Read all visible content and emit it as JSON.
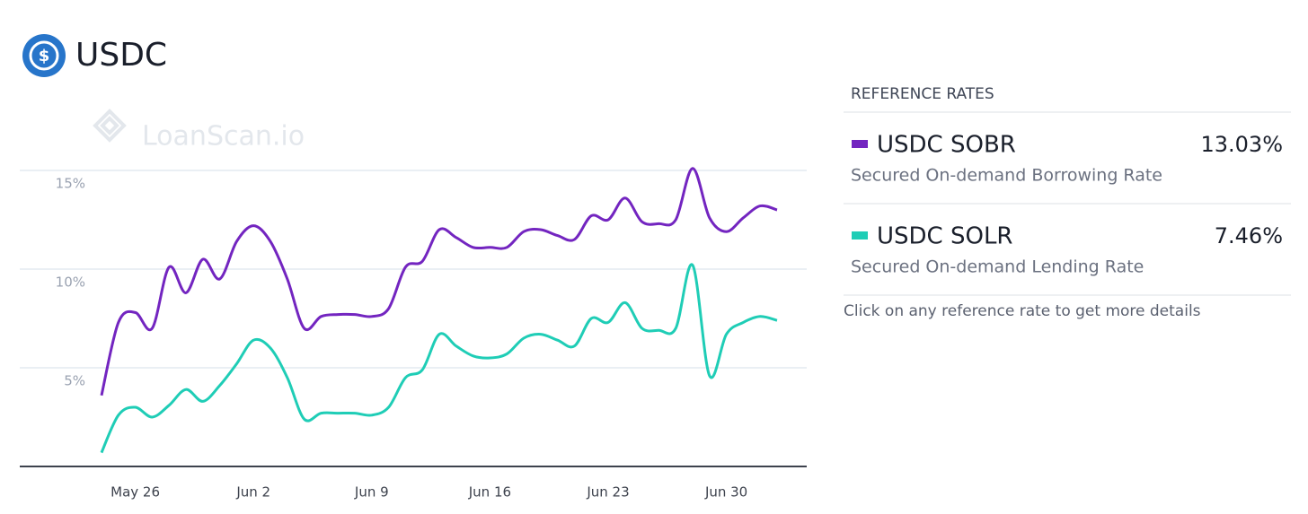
{
  "header": {
    "title": "USDC",
    "watermark": "LoanScan.io"
  },
  "chart_data": {
    "type": "line",
    "categories": [
      null,
      null,
      "May 26",
      null,
      null,
      null,
      null,
      null,
      null,
      "Jun 2",
      null,
      null,
      null,
      null,
      null,
      null,
      "Jun 9",
      null,
      null,
      null,
      null,
      null,
      null,
      "Jun 16",
      null,
      null,
      null,
      null,
      null,
      null,
      "Jun 23",
      null,
      null,
      null,
      null,
      null,
      null,
      "Jun 30",
      null,
      null,
      null
    ],
    "series": [
      {
        "name": "USDC SOBR",
        "color": "#7325c0",
        "values": [
          3.6,
          7.3,
          7.8,
          7.0,
          10.1,
          8.8,
          10.5,
          9.5,
          11.4,
          12.2,
          11.4,
          9.5,
          7.0,
          7.6,
          7.7,
          7.7,
          7.6,
          8.0,
          10.1,
          10.4,
          12.0,
          11.6,
          11.1,
          11.1,
          11.1,
          11.9,
          12.0,
          11.7,
          11.5,
          12.7,
          12.5,
          13.6,
          12.4,
          12.3,
          12.5,
          15.1,
          12.6,
          11.9,
          12.6,
          13.2,
          13.0
        ]
      },
      {
        "name": "USDC SOLR",
        "color": "#1fcdb6",
        "values": [
          0.7,
          2.6,
          3.0,
          2.5,
          3.1,
          3.9,
          3.3,
          4.1,
          5.2,
          6.4,
          6.0,
          4.5,
          2.4,
          2.7,
          2.7,
          2.7,
          2.6,
          3.0,
          4.5,
          4.9,
          6.7,
          6.1,
          5.6,
          5.5,
          5.7,
          6.5,
          6.7,
          6.4,
          6.1,
          7.5,
          7.3,
          8.3,
          7.0,
          6.9,
          7.0,
          10.2,
          4.6,
          6.7,
          7.3,
          7.6,
          7.4
        ]
      }
    ],
    "ylim": [
      0,
      16
    ],
    "yticks": [
      {
        "value": 5,
        "label": "5%"
      },
      {
        "value": 10,
        "label": "10%"
      },
      {
        "value": 15,
        "label": "15%"
      }
    ],
    "grid": true
  },
  "panel": {
    "heading": "REFERENCE RATES",
    "items": [
      {
        "name": "USDC SOBR",
        "description": "Secured On-demand Borrowing Rate",
        "value": "13.03%",
        "color": "#7325c0"
      },
      {
        "name": "USDC SOLR",
        "description": "Secured On-demand Lending Rate",
        "value": "7.46%",
        "color": "#1fcdb6"
      }
    ],
    "footer": "Click on any reference rate to get more details"
  }
}
